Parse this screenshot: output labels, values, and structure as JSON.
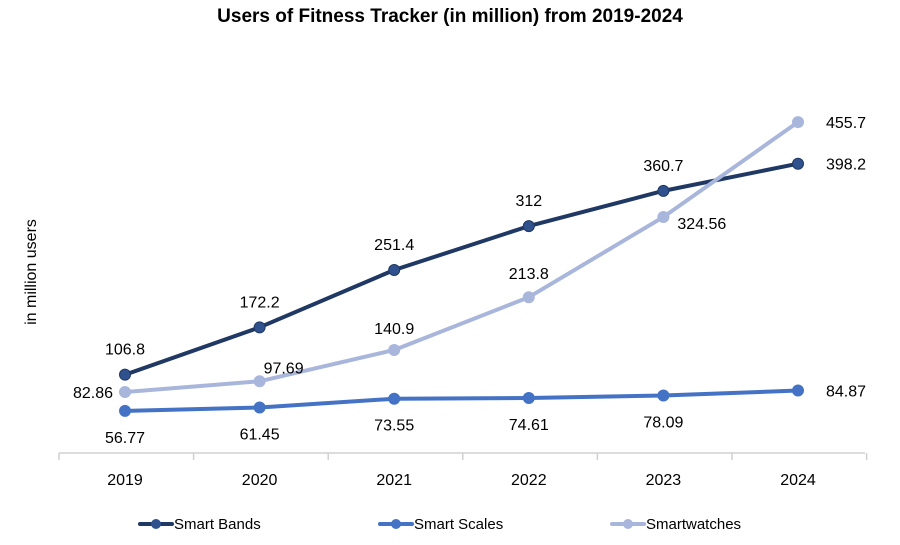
{
  "chart_data": {
    "type": "line",
    "title": "Users of Fitness Tracker (in million) from 2019-2024",
    "xlabel": "",
    "ylabel": "in million users",
    "categories": [
      "2019",
      "2020",
      "2021",
      "2022",
      "2023",
      "2024"
    ],
    "ylim": [
      0,
      460
    ],
    "grid": false,
    "legend_position": "bottom",
    "series": [
      {
        "name": "Smart Bands",
        "color": "#203864",
        "values": [
          106.8,
          172.2,
          251.4,
          312,
          360.7,
          398.2
        ],
        "labels": [
          "106.8",
          "172.2",
          "251.4",
          "312",
          "360.7",
          "398.2"
        ]
      },
      {
        "name": "Smart Scales",
        "color": "#4472C4",
        "values": [
          56.77,
          61.45,
          73.55,
          74.61,
          78.09,
          84.87
        ],
        "labels": [
          "56.77",
          "61.45",
          "73.55",
          "74.61",
          "78.09",
          "84.87"
        ]
      },
      {
        "name": "Smartwatches",
        "color": "#A9B6DC",
        "values": [
          82.86,
          97.69,
          140.9,
          213.8,
          324.56,
          455.7
        ],
        "labels": [
          "82.86",
          "97.69",
          "140.9",
          "213.8",
          "324.56",
          "455.7"
        ]
      }
    ]
  }
}
